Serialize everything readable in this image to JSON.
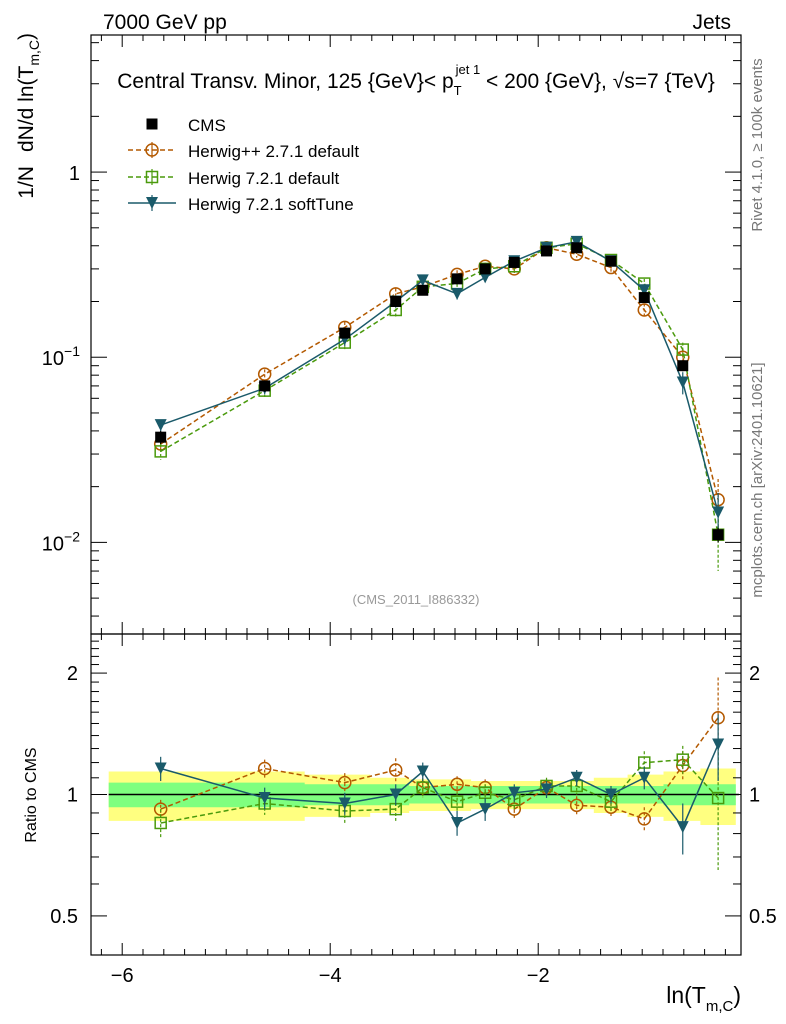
{
  "header": {
    "energy": "7000 GeV pp",
    "category": "Jets",
    "title": "Central Transv. Minor, 125 {GeV}< p_T^jet 1 < 200 {GeV}, √s=7 {TeV}"
  },
  "side": {
    "rivet": "Rivet 4.1.0, ≥ 100k events",
    "source": "mcplots.cern.ch [arXiv:2401.10621]"
  },
  "watermark": "(CMS_2011_I886332)",
  "colors": {
    "cms": "#000000",
    "herwigpp": "#b35900",
    "herwig721": "#4a9a0c",
    "softtune": "#1a5a6a",
    "band_inner": "#7fff7f",
    "band_outer": "#ffff80"
  },
  "chart_data": [
    {
      "type": "line",
      "title": "Central Transv. Minor, 125 {GeV}< p_T^jet 1 < 200 {GeV}, √s=7 {TeV}",
      "ylabel": "1/N  dN/d ln(T_m,C)",
      "ylabel_parts": {
        "a": "1/N",
        "b": "dN/d ln(T",
        "sub": "m,C",
        "c": ")"
      },
      "xlabel": "ln(T_m,C)",
      "xlabel_parts": {
        "a": "ln(T",
        "sub": "m,C",
        "c": ")"
      },
      "yscale": "log",
      "ylim": [
        0.0032,
        5.5
      ],
      "xlim": [
        -6.3,
        -0.05
      ],
      "yticks": [
        {
          "v": 0.01,
          "base": "10",
          "exp": "−2"
        },
        {
          "v": 0.1,
          "base": "10",
          "exp": "−1"
        },
        {
          "v": 1,
          "base": "1",
          "exp": ""
        }
      ],
      "x": [
        -5.63,
        -4.63,
        -3.86,
        -3.37,
        -3.11,
        -2.78,
        -2.51,
        -2.23,
        -1.92,
        -1.63,
        -1.3,
        -0.98,
        -0.61,
        -0.27
      ],
      "series": [
        {
          "name": "CMS",
          "key": "cms",
          "marker": "square-filled",
          "values": [
            0.037,
            0.07,
            0.135,
            0.2,
            0.23,
            0.265,
            0.3,
            0.325,
            0.375,
            0.39,
            0.33,
            0.21,
            0.09,
            0.011
          ],
          "err": [
            0.003,
            0.005,
            0.008,
            0.01,
            0.01,
            0.01,
            0.01,
            0.01,
            0.01,
            0.01,
            0.01,
            0.01,
            0.006,
            0.001
          ]
        },
        {
          "name": "Herwig++ 2.7.1 default",
          "key": "herwigpp",
          "marker": "circle-open",
          "values": [
            0.034,
            0.081,
            0.145,
            0.22,
            0.24,
            0.28,
            0.31,
            0.3,
            0.39,
            0.36,
            0.305,
            0.18,
            0.1,
            0.017
          ],
          "err": [
            0.003,
            0.005,
            0.01,
            0.015,
            0.015,
            0.015,
            0.015,
            0.015,
            0.015,
            0.015,
            0.015,
            0.015,
            0.01,
            0.005
          ]
        },
        {
          "name": "Herwig 7.2.1 default",
          "key": "herwig721",
          "marker": "square-open",
          "values": [
            0.031,
            0.066,
            0.12,
            0.18,
            0.24,
            0.25,
            0.3,
            0.31,
            0.39,
            0.41,
            0.335,
            0.25,
            0.11,
            0.011
          ],
          "err": [
            0.003,
            0.005,
            0.01,
            0.015,
            0.015,
            0.015,
            0.015,
            0.015,
            0.015,
            0.015,
            0.015,
            0.015,
            0.01,
            0.004
          ]
        },
        {
          "name": "Herwig 7.2.1 softTune",
          "key": "softtune",
          "marker": "triangle-down-filled",
          "values": [
            0.043,
            0.068,
            0.125,
            0.2,
            0.26,
            0.22,
            0.27,
            0.33,
            0.39,
            0.42,
            0.33,
            0.23,
            0.073,
            0.0145
          ],
          "err": [
            0.003,
            0.005,
            0.01,
            0.015,
            0.015,
            0.015,
            0.015,
            0.015,
            0.015,
            0.015,
            0.015,
            0.015,
            0.01,
            0.004
          ]
        }
      ]
    },
    {
      "type": "line",
      "ylabel": "Ratio to CMS",
      "yscale": "log",
      "ylim": [
        0.4,
        2.5
      ],
      "xlim": [
        -6.3,
        -0.05
      ],
      "yticks": [
        {
          "v": 0.5,
          "label": "0.5"
        },
        {
          "v": 1,
          "label": "1"
        },
        {
          "v": 2,
          "label": "2"
        }
      ],
      "xticks": [
        {
          "v": -6,
          "label": "−6"
        },
        {
          "v": -4,
          "label": "−4"
        },
        {
          "v": -2,
          "label": "−2"
        }
      ],
      "x": [
        -5.63,
        -4.63,
        -3.86,
        -3.37,
        -3.11,
        -2.78,
        -2.51,
        -2.23,
        -1.92,
        -1.63,
        -1.3,
        -0.98,
        -0.61,
        -0.27
      ],
      "band_inner": [
        0.07,
        0.07,
        0.06,
        0.06,
        0.05,
        0.05,
        0.05,
        0.05,
        0.05,
        0.05,
        0.05,
        0.05,
        0.06,
        0.06
      ],
      "band_outer": [
        0.14,
        0.14,
        0.12,
        0.1,
        0.09,
        0.09,
        0.08,
        0.08,
        0.08,
        0.08,
        0.1,
        0.12,
        0.14,
        0.16
      ],
      "series": [
        {
          "name": "Herwig++ 2.7.1 default",
          "key": "herwigpp",
          "marker": "circle-open",
          "values": [
            0.92,
            1.16,
            1.07,
            1.15,
            1.04,
            1.06,
            1.04,
            0.92,
            1.04,
            0.94,
            0.93,
            0.87,
            1.18,
            1.55
          ],
          "err": [
            0.05,
            0.06,
            0.06,
            0.08,
            0.06,
            0.05,
            0.05,
            0.05,
            0.05,
            0.05,
            0.05,
            0.06,
            0.1,
            0.4
          ]
        },
        {
          "name": "Herwig 7.2.1 default",
          "key": "herwig721",
          "marker": "square-open",
          "values": [
            0.85,
            0.95,
            0.91,
            0.92,
            1.04,
            0.96,
            1.01,
            0.97,
            1.05,
            1.05,
            0.96,
            1.2,
            1.22,
            0.98
          ],
          "err": [
            0.07,
            0.06,
            0.06,
            0.06,
            0.05,
            0.05,
            0.05,
            0.05,
            0.05,
            0.05,
            0.05,
            0.08,
            0.1,
            0.33
          ]
        },
        {
          "name": "Herwig 7.2.1 softTune",
          "key": "softtune",
          "marker": "triangle-down-filled",
          "values": [
            1.16,
            0.98,
            0.95,
            1.0,
            1.14,
            0.85,
            0.92,
            1.01,
            1.03,
            1.1,
            1.0,
            1.1,
            0.83,
            1.33
          ],
          "err": [
            0.08,
            0.06,
            0.06,
            0.06,
            0.06,
            0.06,
            0.06,
            0.05,
            0.05,
            0.05,
            0.05,
            0.07,
            0.12,
            0.25
          ]
        }
      ]
    }
  ]
}
